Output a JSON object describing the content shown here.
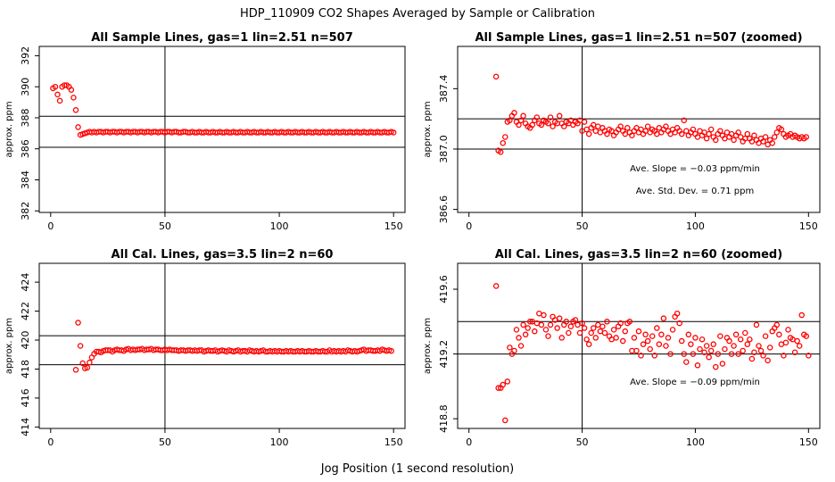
{
  "figure": {
    "title": "HDP_110909  CO2 Shapes Averaged by Sample or Calibration",
    "xlabel": "Jog Position (1 second resolution)"
  },
  "chart_data": [
    {
      "type": "scatter",
      "title": "All Sample Lines, gas=1 lin=2.51 n=507",
      "ylabel": "approx. ppm",
      "xlim": [
        -5,
        155
      ],
      "ylim": [
        381.9,
        392.6
      ],
      "xticks": [
        "0",
        "50",
        "100",
        "150"
      ],
      "xtick_values": [
        0,
        50,
        100,
        150
      ],
      "yticks": [
        "382",
        "384",
        "386",
        "388",
        "390",
        "392"
      ],
      "ytick_values": [
        382,
        384,
        386,
        388,
        390,
        392
      ],
      "hlines": [
        386.1,
        388.1
      ],
      "vline": 50,
      "marker_color": "#ff0000",
      "x_start": 1,
      "y": [
        389.9,
        390.0,
        389.5,
        389.1,
        390.0,
        390.1,
        390.1,
        390.0,
        389.8,
        389.3,
        388.5,
        387.4,
        386.9,
        386.95,
        387.0,
        387.05,
        387.1,
        387.05,
        387.1,
        387.05,
        387.1,
        387.1,
        387.05,
        387.1,
        387.1,
        387.05,
        387.1,
        387.1,
        387.05,
        387.1,
        387.1,
        387.05,
        387.1,
        387.1,
        387.05,
        387.1,
        387.1,
        387.05,
        387.1,
        387.1,
        387.05,
        387.1,
        387.1,
        387.05,
        387.1,
        387.1,
        387.05,
        387.1,
        387.1,
        387.05,
        387.1,
        387.1,
        387.05,
        387.1,
        387.1,
        387.05,
        387.05,
        387.1,
        387.1,
        387.05,
        387.05,
        387.1,
        387.05,
        387.05,
        387.1,
        387.05,
        387.05,
        387.1,
        387.05,
        387.05,
        387.1,
        387.05,
        387.05,
        387.1,
        387.05,
        387.05,
        387.1,
        387.05,
        387.05,
        387.1,
        387.05,
        387.05,
        387.1,
        387.05,
        387.05,
        387.1,
        387.05,
        387.05,
        387.1,
        387.05,
        387.05,
        387.1,
        387.05,
        387.05,
        387.1,
        387.05,
        387.05,
        387.1,
        387.05,
        387.05,
        387.1,
        387.05,
        387.05,
        387.1,
        387.05,
        387.05,
        387.1,
        387.05,
        387.05,
        387.1,
        387.05,
        387.05,
        387.1,
        387.05,
        387.05,
        387.1,
        387.05,
        387.05,
        387.1,
        387.05,
        387.05,
        387.1,
        387.05,
        387.05,
        387.1,
        387.05,
        387.05,
        387.1,
        387.05,
        387.05,
        387.1,
        387.05,
        387.05,
        387.1,
        387.05,
        387.05,
        387.1,
        387.05,
        387.05,
        387.1,
        387.05,
        387.05,
        387.1,
        387.05,
        387.05,
        387.1,
        387.05,
        387.05,
        387.1,
        387.05
      ],
      "annotations": []
    },
    {
      "type": "scatter",
      "title": "All Sample Lines, gas=1 lin=2.51 n=507 (zoomed)",
      "ylabel": "approx. ppm",
      "xlim": [
        -5,
        155
      ],
      "ylim": [
        386.58,
        387.68
      ],
      "xticks": [
        "0",
        "50",
        "100",
        "150"
      ],
      "xtick_values": [
        0,
        50,
        100,
        150
      ],
      "yticks": [
        "386.6",
        "387.0",
        "387.4"
      ],
      "ytick_values": [
        386.6,
        387.0,
        387.4
      ],
      "hlines": [
        387.0,
        387.2
      ],
      "vline": 50,
      "marker_color": "#ff0000",
      "x_start": 12,
      "y": [
        387.48,
        386.99,
        386.98,
        387.04,
        387.08,
        387.18,
        387.19,
        387.22,
        387.24,
        387.18,
        387.16,
        387.19,
        387.22,
        387.17,
        387.15,
        387.14,
        387.16,
        387.19,
        387.21,
        387.17,
        387.16,
        387.19,
        387.18,
        387.17,
        387.21,
        387.15,
        387.18,
        387.17,
        387.22,
        387.17,
        387.15,
        387.18,
        387.17,
        387.19,
        387.16,
        387.18,
        387.17,
        387.19,
        387.12,
        387.18,
        387.13,
        387.1,
        387.14,
        387.16,
        387.12,
        387.15,
        387.11,
        387.14,
        387.12,
        387.1,
        387.13,
        387.12,
        387.09,
        387.11,
        387.13,
        387.15,
        387.12,
        387.1,
        387.14,
        387.11,
        387.09,
        387.12,
        387.14,
        387.11,
        387.13,
        387.1,
        387.12,
        387.15,
        387.11,
        387.13,
        387.12,
        387.1,
        387.14,
        387.11,
        387.13,
        387.15,
        387.12,
        387.1,
        387.13,
        387.11,
        387.14,
        387.12,
        387.1,
        387.19,
        387.12,
        387.09,
        387.11,
        387.13,
        387.1,
        387.08,
        387.12,
        387.09,
        387.11,
        387.07,
        387.1,
        387.13,
        387.08,
        387.06,
        387.1,
        387.12,
        387.09,
        387.07,
        387.11,
        387.08,
        387.1,
        387.06,
        387.09,
        387.11,
        387.08,
        387.05,
        387.07,
        387.1,
        387.07,
        387.05,
        387.09,
        387.06,
        387.04,
        387.07,
        387.05,
        387.08,
        387.03,
        387.06,
        387.04,
        387.08,
        387.11,
        387.14,
        387.13,
        387.1,
        387.08,
        387.09,
        387.1,
        387.08,
        387.09,
        387.08,
        387.07,
        387.08,
        387.07,
        387.08
      ],
      "annotations": [
        "Ave. Slope =  −0.03  ppm/min",
        "Ave. Std. Dev. =  0.71  ppm"
      ]
    },
    {
      "type": "scatter",
      "title": "All Cal. Lines, gas=3.5 lin=2 n=60",
      "ylabel": "approx. ppm",
      "xlim": [
        -5,
        155
      ],
      "ylim": [
        413.9,
        425.3
      ],
      "xticks": [
        "0",
        "50",
        "100",
        "150"
      ],
      "xtick_values": [
        0,
        50,
        100,
        150
      ],
      "yticks": [
        "414",
        "416",
        "418",
        "420",
        "422",
        "424"
      ],
      "ytick_values": [
        414,
        416,
        418,
        420,
        422,
        424
      ],
      "hlines": [
        418.3,
        420.3
      ],
      "vline": 50,
      "marker_color": "#ff0000",
      "x_start": 11,
      "y": [
        417.95,
        421.2,
        419.6,
        418.4,
        418.05,
        418.1,
        418.45,
        418.8,
        419.05,
        419.2,
        419.2,
        419.15,
        419.25,
        419.3,
        419.3,
        419.3,
        419.2,
        419.3,
        419.35,
        419.3,
        419.3,
        419.25,
        419.35,
        419.4,
        419.3,
        419.35,
        419.3,
        419.35,
        419.35,
        419.4,
        419.3,
        419.35,
        419.35,
        419.4,
        419.3,
        419.35,
        419.35,
        419.3,
        419.3,
        419.35,
        419.3,
        419.35,
        419.3,
        419.3,
        419.3,
        419.25,
        419.3,
        419.3,
        419.25,
        419.3,
        419.3,
        419.25,
        419.3,
        419.25,
        419.3,
        419.3,
        419.2,
        419.25,
        419.3,
        419.25,
        419.25,
        419.3,
        419.2,
        419.25,
        419.3,
        419.25,
        419.2,
        419.3,
        419.25,
        419.2,
        419.25,
        419.3,
        419.2,
        419.25,
        419.25,
        419.2,
        419.3,
        419.25,
        419.2,
        419.25,
        419.2,
        419.25,
        419.3,
        419.2,
        419.2,
        419.25,
        419.2,
        419.25,
        419.2,
        419.25,
        419.2,
        419.2,
        419.25,
        419.2,
        419.25,
        419.2,
        419.2,
        419.25,
        419.2,
        419.25,
        419.2,
        419.2,
        419.25,
        419.2,
        419.2,
        419.25,
        419.2,
        419.2,
        419.25,
        419.2,
        419.2,
        419.3,
        419.2,
        419.25,
        419.2,
        419.25,
        419.2,
        419.25,
        419.2,
        419.3,
        419.25,
        419.2,
        419.25,
        419.2,
        419.25,
        419.3,
        419.35,
        419.25,
        419.3,
        419.3,
        419.25,
        419.25,
        419.3,
        419.25,
        419.35,
        419.3,
        419.25,
        419.3,
        419.25
      ],
      "annotations": []
    },
    {
      "type": "scatter",
      "title": "All Cal. Lines, gas=3.5 lin=2 n=60 (zoomed)",
      "ylabel": "approx. ppm",
      "xlim": [
        -5,
        155
      ],
      "ylim": [
        418.74,
        419.76
      ],
      "xticks": [
        "0",
        "50",
        "100",
        "150"
      ],
      "xtick_values": [
        0,
        50,
        100,
        150
      ],
      "yticks": [
        "418.8",
        "419.2",
        "419.6"
      ],
      "ytick_values": [
        418.8,
        419.2,
        419.6
      ],
      "hlines": [
        419.2,
        419.4
      ],
      "vline": 50,
      "marker_color": "#ff0000",
      "x_start": 12,
      "y": [
        419.62,
        418.99,
        418.99,
        419.01,
        418.79,
        419.03,
        419.24,
        419.2,
        419.22,
        419.35,
        419.3,
        419.25,
        419.38,
        419.32,
        419.36,
        419.4,
        419.4,
        419.34,
        419.39,
        419.45,
        419.38,
        419.44,
        419.35,
        419.31,
        419.38,
        419.43,
        419.41,
        419.36,
        419.42,
        419.3,
        419.38,
        419.4,
        419.33,
        419.37,
        419.4,
        419.41,
        419.38,
        419.33,
        419.39,
        419.36,
        419.29,
        419.26,
        419.33,
        419.36,
        419.3,
        419.38,
        419.34,
        419.37,
        419.33,
        419.4,
        419.31,
        419.29,
        419.35,
        419.3,
        419.37,
        419.39,
        419.28,
        419.34,
        419.39,
        419.4,
        419.22,
        419.3,
        419.22,
        419.34,
        419.19,
        419.26,
        419.32,
        419.28,
        419.23,
        419.31,
        419.19,
        419.36,
        419.26,
        419.32,
        419.42,
        419.25,
        419.3,
        419.2,
        419.35,
        419.43,
        419.45,
        419.39,
        419.28,
        419.2,
        419.15,
        419.32,
        419.26,
        419.2,
        419.3,
        419.13,
        419.23,
        419.29,
        419.21,
        419.25,
        419.18,
        419.22,
        419.26,
        419.12,
        419.2,
        419.31,
        419.14,
        419.23,
        419.3,
        419.28,
        419.2,
        419.25,
        419.32,
        419.2,
        419.29,
        419.22,
        419.33,
        419.26,
        419.29,
        419.17,
        419.21,
        419.38,
        419.25,
        419.22,
        419.19,
        419.31,
        419.16,
        419.24,
        419.34,
        419.36,
        419.38,
        419.32,
        419.26,
        419.19,
        419.27,
        419.35,
        419.3,
        419.29,
        419.21,
        419.28,
        419.25,
        419.44,
        419.32,
        419.31,
        419.19
      ],
      "annotations": [
        "Ave. Slope =  −0.09  ppm/min"
      ]
    }
  ]
}
